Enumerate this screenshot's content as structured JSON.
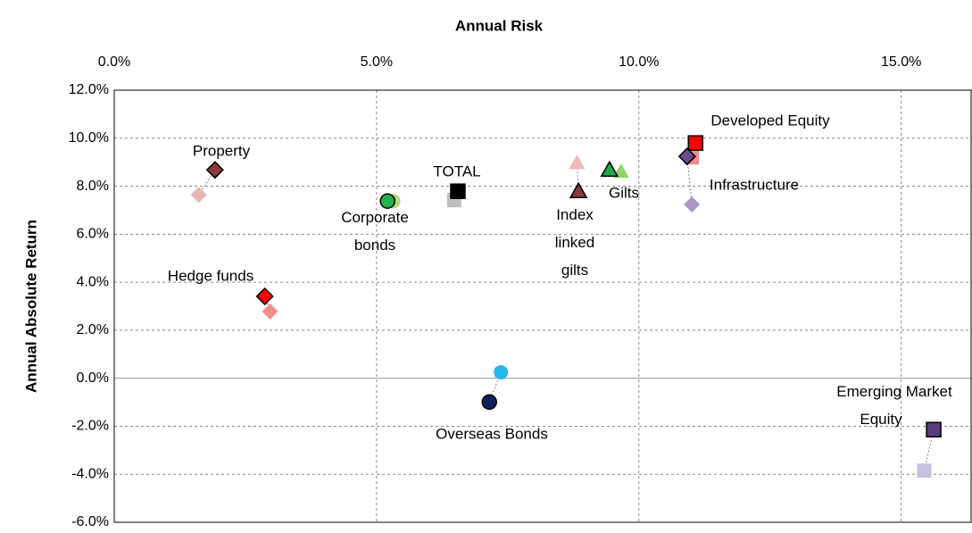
{
  "chart_data": {
    "type": "scatter",
    "x_label": "Annual Risk",
    "y_label": "Annual Absolute Return",
    "xlim": [
      0,
      16.35
    ],
    "ylim": [
      -6,
      12
    ],
    "xticks": [
      {
        "value": 0,
        "label": "0.0%"
      },
      {
        "value": 5,
        "label": "5.0%"
      },
      {
        "value": 10,
        "label": "10.0%"
      },
      {
        "value": 15,
        "label": "15.0%"
      }
    ],
    "yticks": [
      {
        "value": -6,
        "label": "-6.0%"
      },
      {
        "value": -4,
        "label": "-4.0%"
      },
      {
        "value": -2,
        "label": "-2.0%"
      },
      {
        "value": 0,
        "label": "0.0%"
      },
      {
        "value": 2,
        "label": "2.0%"
      },
      {
        "value": 4,
        "label": "4.0%"
      },
      {
        "value": 6,
        "label": "6.0%"
      },
      {
        "value": 8,
        "label": "8.0%"
      },
      {
        "value": 10,
        "label": "10.0%"
      },
      {
        "value": 12,
        "label": "12.0%"
      }
    ],
    "grid": true,
    "assets": [
      {
        "label": "Property",
        "marker": "diamond",
        "colors": [
          "#8b3a3a",
          "#e6b4b4"
        ],
        "x": [
          1.92,
          1.61
        ],
        "y": [
          8.68,
          7.64
        ]
      },
      {
        "label": "Hedge funds",
        "marker": "diamond",
        "colors": [
          "#ff0000",
          "#f28c8c"
        ],
        "x": [
          2.87,
          2.97
        ],
        "y": [
          3.41,
          2.78
        ]
      },
      {
        "label": "Corporate\nbonds",
        "marker": "circle",
        "colors": [
          "#22b14c",
          "#b5d97a"
        ],
        "x": [
          5.21,
          5.32
        ],
        "y": [
          7.38,
          7.38
        ]
      },
      {
        "label": "TOTAL",
        "marker": "square",
        "colors": [
          "#000000",
          "#bfbfbf"
        ],
        "x": [
          6.55,
          6.48
        ],
        "y": [
          7.79,
          7.42
        ]
      },
      {
        "label": "Overseas Bonds",
        "marker": "circle",
        "colors": [
          "#0f1f5c",
          "#29b6e6"
        ],
        "x": [
          7.15,
          7.37
        ],
        "y": [
          -0.99,
          0.25
        ]
      },
      {
        "label": "Index\nlinked\ngilts",
        "marker": "triangle",
        "colors": [
          "#8b3a3a",
          "#f0b8b8"
        ],
        "x": [
          8.85,
          8.82
        ],
        "y": [
          7.79,
          8.98
        ]
      },
      {
        "label": "Gilts",
        "marker": "triangle",
        "colors": [
          "#1faa4a",
          "#8fd460"
        ],
        "x": [
          9.44,
          9.66
        ],
        "y": [
          8.68,
          8.61
        ]
      },
      {
        "label": "Developed Equity",
        "marker": "square",
        "colors": [
          "#ff0000",
          "#f08c8c"
        ],
        "x": [
          11.08,
          11.01
        ],
        "y": [
          9.8,
          9.2
        ]
      },
      {
        "label": "Infrastructure",
        "marker": "diamond",
        "colors": [
          "#6b4c8a",
          "#a898c8"
        ],
        "x": [
          10.92,
          11.01
        ],
        "y": [
          9.24,
          7.24
        ]
      },
      {
        "label": "Emerging Market\nEquity",
        "marker": "square",
        "colors": [
          "#5a3d7a",
          "#c8c0dc"
        ],
        "x": [
          15.62,
          15.44
        ],
        "y": [
          -2.14,
          -3.85
        ]
      }
    ]
  }
}
